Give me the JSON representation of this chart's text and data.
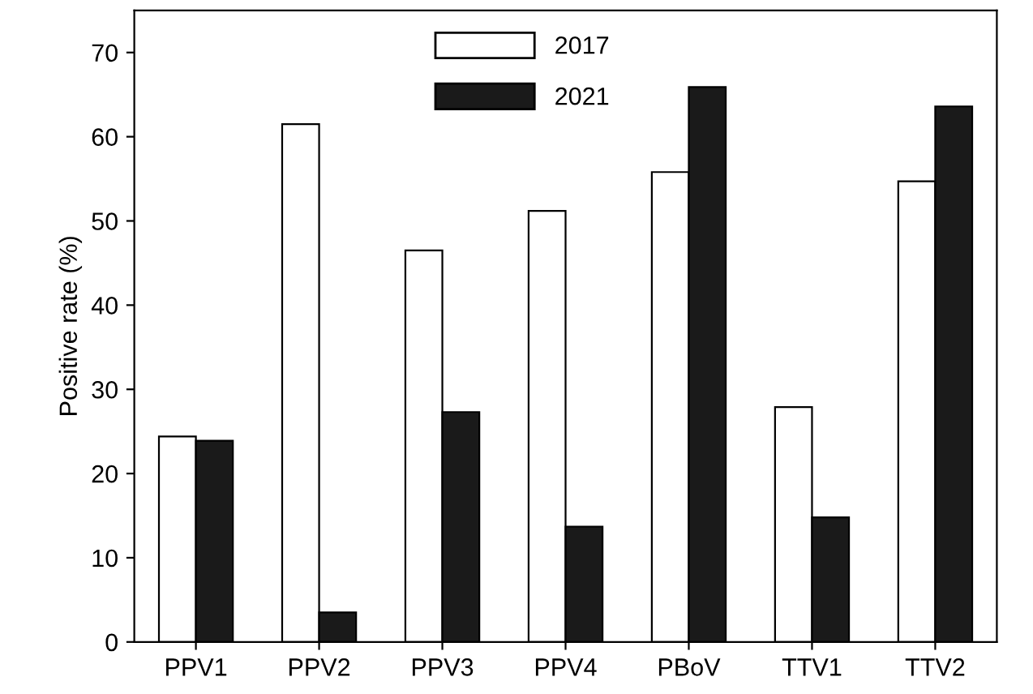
{
  "chart_data": {
    "type": "bar",
    "ylabel": "Positive rate (%)",
    "categories": [
      "PPV1",
      "PPV2",
      "PPV3",
      "PPV4",
      "PBoV",
      "TTV1",
      "TTV2"
    ],
    "series": [
      {
        "name": "2017",
        "color": "#ffffff",
        "values": [
          24.4,
          61.5,
          46.5,
          51.2,
          55.8,
          27.9,
          54.7
        ]
      },
      {
        "name": "2021",
        "color": "#1a1a1a",
        "values": [
          23.9,
          3.5,
          27.3,
          13.7,
          65.9,
          14.8,
          63.6
        ]
      }
    ],
    "ylim": [
      0,
      75
    ],
    "yticks": [
      0,
      10,
      20,
      30,
      40,
      50,
      60,
      70
    ],
    "grid": false,
    "legend": "top"
  }
}
